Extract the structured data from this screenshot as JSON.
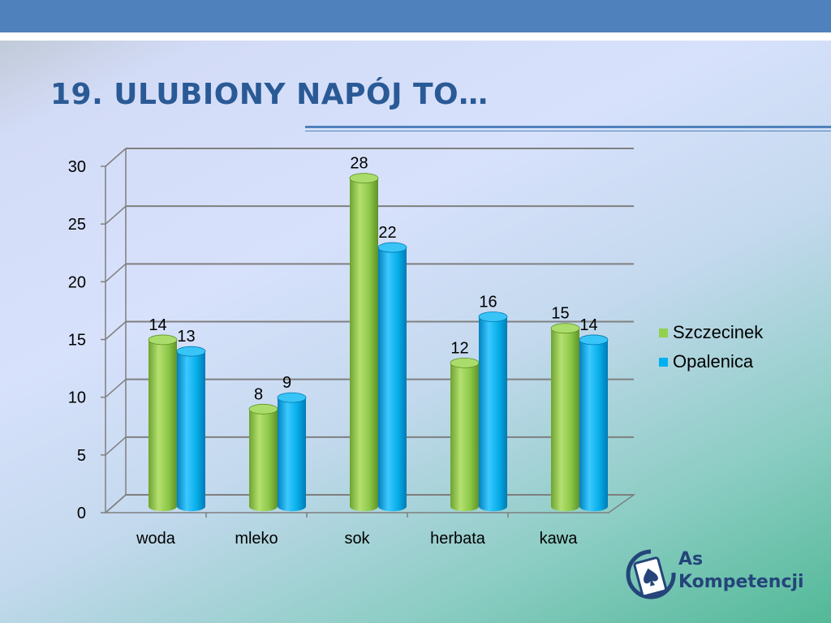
{
  "slide": {
    "title": "19. ULUBIONY NAPÓJ TO…"
  },
  "logo": {
    "line1": "As",
    "line2": "Kompetencji",
    "icon": "spade-card-icon"
  },
  "colors": {
    "top_bar": "#4f81bd",
    "title": "#2a5a96",
    "series_1": "#92d050",
    "series_2": "#00b0f0",
    "logo": "#24447a"
  },
  "chart_data": {
    "type": "bar",
    "style": "3d-cylinder",
    "categories": [
      "woda",
      "mleko",
      "sok",
      "herbata",
      "kawa"
    ],
    "series": [
      {
        "name": "Szczecinek",
        "values": [
          14,
          8,
          28,
          12,
          15
        ],
        "color": "#92d050"
      },
      {
        "name": "Opalenica",
        "values": [
          13,
          9,
          22,
          16,
          14
        ],
        "color": "#00b0f0"
      }
    ],
    "ylim": [
      0,
      30
    ],
    "yticks": [
      "0",
      "5",
      "10",
      "15",
      "20",
      "25",
      "30"
    ],
    "grid": true,
    "legend_position": "right",
    "data_labels": true
  }
}
